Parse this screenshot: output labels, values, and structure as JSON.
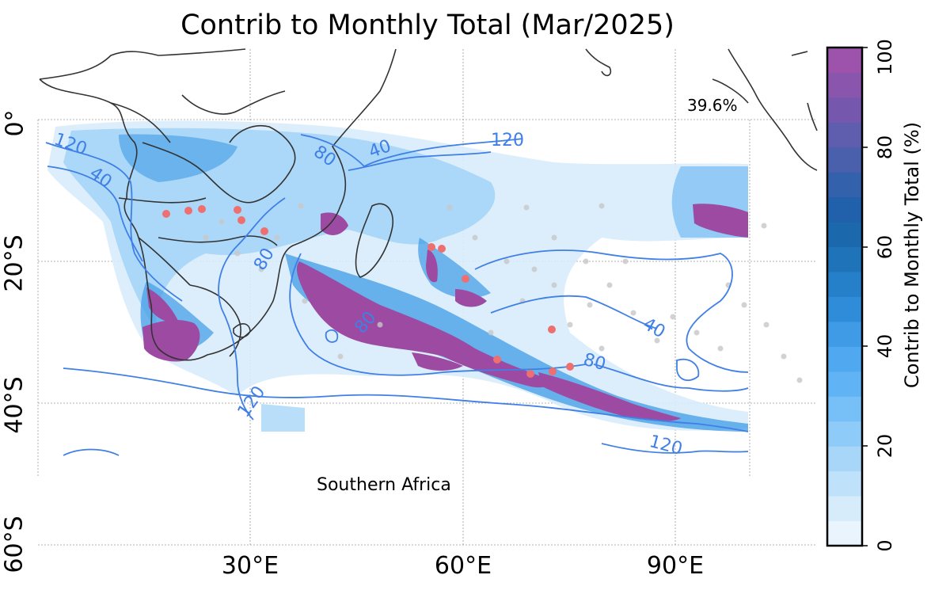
{
  "title": "Contrib to Monthly Total (Mar/2025)",
  "region_label": "Southern Africa",
  "percent_label": "39.6%",
  "latitude_labels": [
    "0°",
    "20°S",
    "40°S",
    "60°S"
  ],
  "longitude_labels": [
    "30°E",
    "60°E",
    "90°E"
  ],
  "colorbar": {
    "label": "Contrib to Monthly Total (%)",
    "ticks": [
      "0",
      "20",
      "40",
      "60",
      "80",
      "100"
    ],
    "range": [
      0,
      100
    ],
    "colors": [
      "#e9f4fd",
      "#d7ecfb",
      "#c0e1fa",
      "#a8d6f9",
      "#8ecbf9",
      "#76bff7",
      "#60b3f5",
      "#4fa8f0",
      "#3f9be6",
      "#2f8cd8",
      "#2680c9",
      "#1f73b9",
      "#1b68ad",
      "#2160aa",
      "#3461ab",
      "#4a60ad",
      "#5e5dae",
      "#7558ae",
      "#8a55ad",
      "#9d53ab"
    ]
  },
  "contour_labels": [
    "120",
    "40",
    "80",
    "40",
    "120",
    "80",
    "80",
    "40",
    "80",
    "120",
    "120"
  ],
  "colors": {
    "contour": "#3f7fe6",
    "high": "#9d4aa3",
    "event_dot": "#ee6f6f",
    "land_line": "#333333",
    "gray_dot": "#c8c8c8"
  }
}
